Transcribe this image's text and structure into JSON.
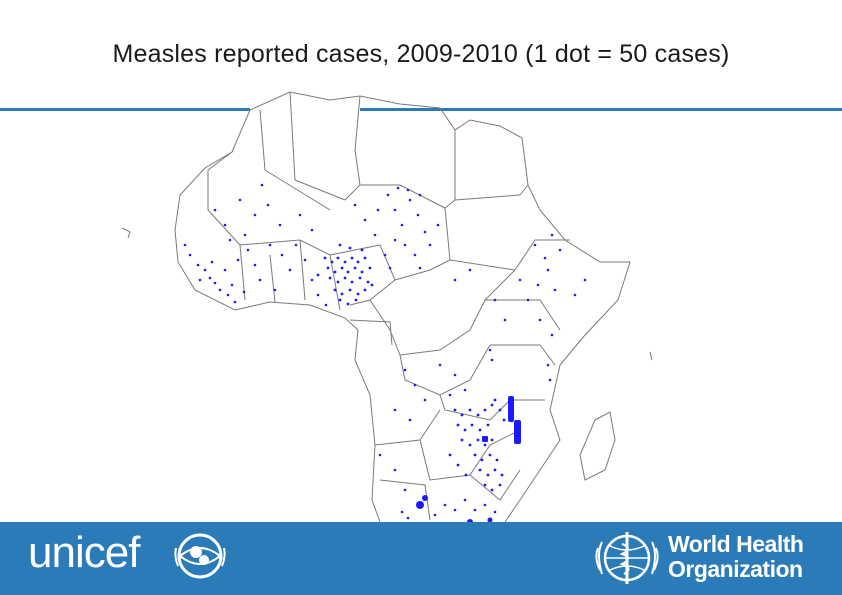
{
  "title": "Measles reported cases, 2009-2010 (1 dot = 50 cases)",
  "colors": {
    "brand_blue": "#2b7bb9",
    "dot_color": "#1a1aff",
    "border_color": "#7a7a7a"
  },
  "footer": {
    "unicef_word": "unicef",
    "unicef_emblem": "unicef-emblem-icon",
    "who_line1": "World Health",
    "who_line2": "Organization",
    "who_emblem": "who-emblem-icon"
  }
}
